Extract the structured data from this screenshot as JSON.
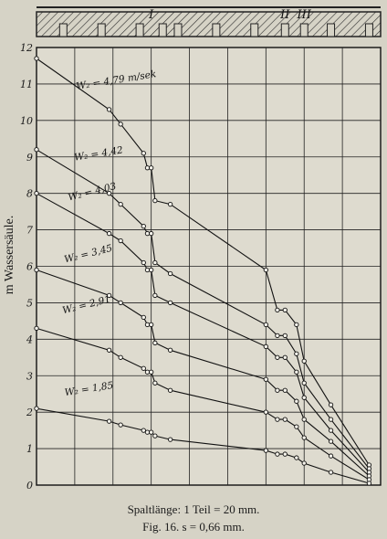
{
  "chart_data": {
    "type": "line",
    "ylabel": "m Wassersäule.",
    "ylim": [
      0,
      12
    ],
    "yticks": [
      "0",
      "1",
      "2",
      "3",
      "4",
      "5",
      "6",
      "7",
      "8",
      "9",
      "10",
      "11",
      "12"
    ],
    "grid": true,
    "slot_markers": [
      "I",
      "II",
      "III"
    ],
    "series": [
      {
        "name": "W₂ = 4,79 m/sek",
        "points": [
          [
            0,
            11.7
          ],
          [
            1.9,
            10.3
          ],
          [
            2.2,
            9.9
          ],
          [
            2.8,
            9.1
          ],
          [
            2.9,
            8.7
          ],
          [
            3.0,
            8.7
          ],
          [
            3.1,
            7.8
          ],
          [
            3.5,
            7.7
          ],
          [
            6.0,
            5.9
          ],
          [
            6.3,
            4.8
          ],
          [
            6.5,
            4.8
          ],
          [
            6.8,
            4.4
          ],
          [
            7.0,
            3.4
          ],
          [
            7.7,
            2.2
          ],
          [
            8.7,
            0.55
          ]
        ]
      },
      {
        "name": "W₂ = 4,42",
        "points": [
          [
            0,
            9.2
          ],
          [
            1.9,
            8.0
          ],
          [
            2.2,
            7.7
          ],
          [
            2.8,
            7.1
          ],
          [
            2.9,
            6.9
          ],
          [
            3.0,
            6.9
          ],
          [
            3.1,
            6.1
          ],
          [
            3.5,
            5.8
          ],
          [
            6.0,
            4.4
          ],
          [
            6.3,
            4.1
          ],
          [
            6.5,
            4.1
          ],
          [
            6.8,
            3.6
          ],
          [
            7.0,
            2.8
          ],
          [
            7.7,
            1.8
          ],
          [
            8.7,
            0.45
          ]
        ]
      },
      {
        "name": "W₂ = 4,03",
        "points": [
          [
            0,
            8.0
          ],
          [
            1.9,
            6.9
          ],
          [
            2.2,
            6.7
          ],
          [
            2.8,
            6.1
          ],
          [
            2.9,
            5.9
          ],
          [
            3.0,
            5.9
          ],
          [
            3.1,
            5.2
          ],
          [
            3.5,
            5.0
          ],
          [
            6.0,
            3.8
          ],
          [
            6.3,
            3.5
          ],
          [
            6.5,
            3.5
          ],
          [
            6.8,
            3.1
          ],
          [
            7.0,
            2.4
          ],
          [
            7.7,
            1.5
          ],
          [
            8.7,
            0.35
          ]
        ]
      },
      {
        "name": "W₂ = 3,45",
        "points": [
          [
            0,
            5.9
          ],
          [
            1.9,
            5.2
          ],
          [
            2.2,
            5.0
          ],
          [
            2.8,
            4.6
          ],
          [
            2.9,
            4.4
          ],
          [
            3.0,
            4.4
          ],
          [
            3.1,
            3.9
          ],
          [
            3.5,
            3.7
          ],
          [
            6.0,
            2.9
          ],
          [
            6.3,
            2.6
          ],
          [
            6.5,
            2.6
          ],
          [
            6.8,
            2.3
          ],
          [
            7.0,
            1.8
          ],
          [
            7.7,
            1.2
          ],
          [
            8.7,
            0.25
          ]
        ]
      },
      {
        "name": "W₂ = 2,91",
        "points": [
          [
            0,
            4.3
          ],
          [
            1.9,
            3.7
          ],
          [
            2.2,
            3.5
          ],
          [
            2.8,
            3.2
          ],
          [
            2.9,
            3.1
          ],
          [
            3.0,
            3.1
          ],
          [
            3.1,
            2.8
          ],
          [
            3.5,
            2.6
          ],
          [
            6.0,
            2.0
          ],
          [
            6.3,
            1.8
          ],
          [
            6.5,
            1.8
          ],
          [
            6.8,
            1.6
          ],
          [
            7.0,
            1.3
          ],
          [
            7.7,
            0.8
          ],
          [
            8.7,
            0.15
          ]
        ]
      },
      {
        "name": "W₂ = 1,85",
        "points": [
          [
            0,
            2.1
          ],
          [
            1.9,
            1.75
          ],
          [
            2.2,
            1.65
          ],
          [
            2.8,
            1.5
          ],
          [
            2.9,
            1.45
          ],
          [
            3.0,
            1.45
          ],
          [
            3.1,
            1.35
          ],
          [
            3.5,
            1.25
          ],
          [
            6.0,
            0.95
          ],
          [
            6.3,
            0.85
          ],
          [
            6.5,
            0.85
          ],
          [
            6.8,
            0.75
          ],
          [
            7.0,
            0.6
          ],
          [
            7.7,
            0.35
          ],
          [
            8.7,
            0.05
          ]
        ]
      }
    ]
  },
  "captions": {
    "spaltlaenge": "Spaltlänge: 1 Teil = 20 mm.",
    "figure": "Fig. 16.  s = 0,66 mm."
  }
}
